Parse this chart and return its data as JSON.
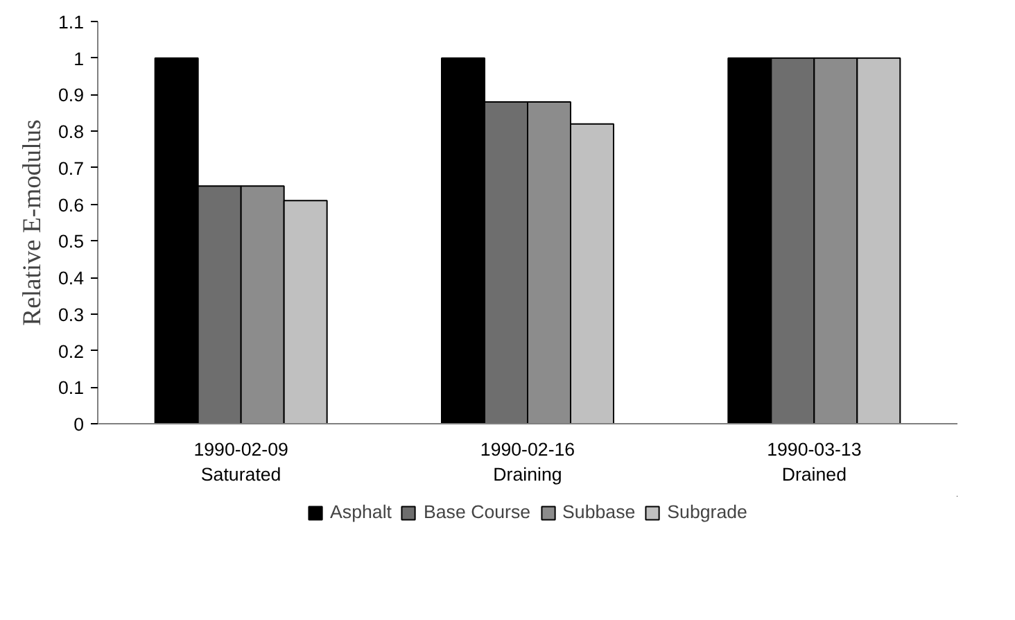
{
  "chart_data": {
    "type": "bar",
    "ylabel": "Relative E-modulus",
    "categories": [
      "1990-02-09\nSaturated",
      "1990-02-16\nDraining",
      "1990-03-13\nDrained"
    ],
    "series": [
      {
        "name": "Asphalt",
        "color": "#000000",
        "values": [
          1,
          1,
          1
        ]
      },
      {
        "name": "Base Course",
        "color": "#6e6e6e",
        "values": [
          0.65,
          0.88,
          1
        ]
      },
      {
        "name": "Subbase",
        "color": "#8c8c8c",
        "values": [
          0.65,
          0.88,
          1
        ]
      },
      {
        "name": "Subgrade",
        "color": "#c0c0c0",
        "values": [
          0.61,
          0.82,
          1
        ]
      }
    ],
    "ylim": [
      0,
      1.1
    ],
    "yticks": [
      0,
      0.1,
      0.2,
      0.3,
      0.4,
      0.5,
      0.6,
      0.7,
      0.8,
      0.9,
      1,
      1.1
    ],
    "grid": false,
    "legend": "bottom"
  }
}
